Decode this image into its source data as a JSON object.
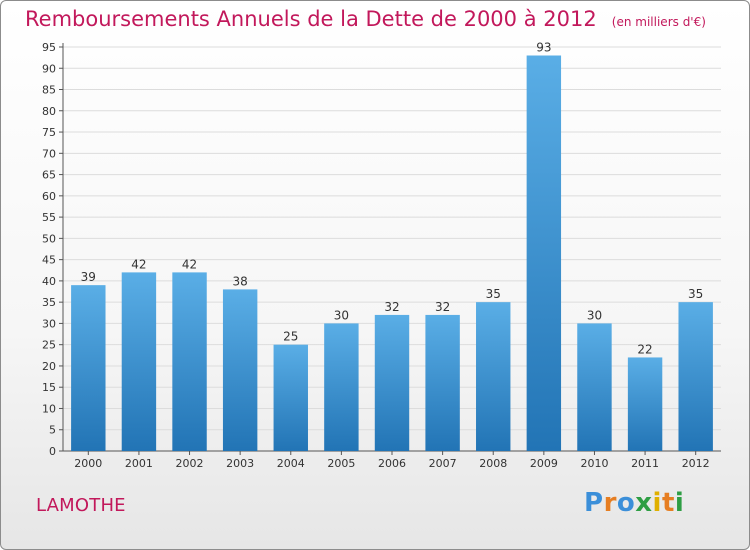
{
  "header": {
    "title": "Remboursements Annuels de la Dette de 2000 à 2012",
    "unit": "(en milliers d'€)"
  },
  "footer": {
    "commune": "LAMOTHE",
    "logo": "Proxiti"
  },
  "colors": {
    "accent": "#c2185b",
    "bar_light": "#5aaee6",
    "bar_dark": "#2274b5",
    "logo_letters": [
      "#3b8fd9",
      "#e67e22",
      "#3b8fd9",
      "#2e9e44",
      "#e0b000",
      "#e67e22",
      "#2e9e44"
    ]
  },
  "chart_data": {
    "type": "bar",
    "categories": [
      "2000",
      "2001",
      "2002",
      "2003",
      "2004",
      "2005",
      "2006",
      "2007",
      "2008",
      "2009",
      "2010",
      "2011",
      "2012"
    ],
    "values": [
      39,
      42,
      42,
      38,
      25,
      30,
      32,
      32,
      35,
      93,
      30,
      22,
      35
    ],
    "title": "Remboursements Annuels de la Dette de 2000 à 2012",
    "xlabel": "",
    "ylabel": "",
    "ylim": [
      0,
      95
    ],
    "yticks": [
      0,
      5,
      10,
      15,
      20,
      25,
      30,
      35,
      40,
      45,
      50,
      55,
      60,
      65,
      70,
      75,
      80,
      85,
      90,
      95
    ],
    "grid": true,
    "data_labels": true,
    "legend": "none"
  }
}
